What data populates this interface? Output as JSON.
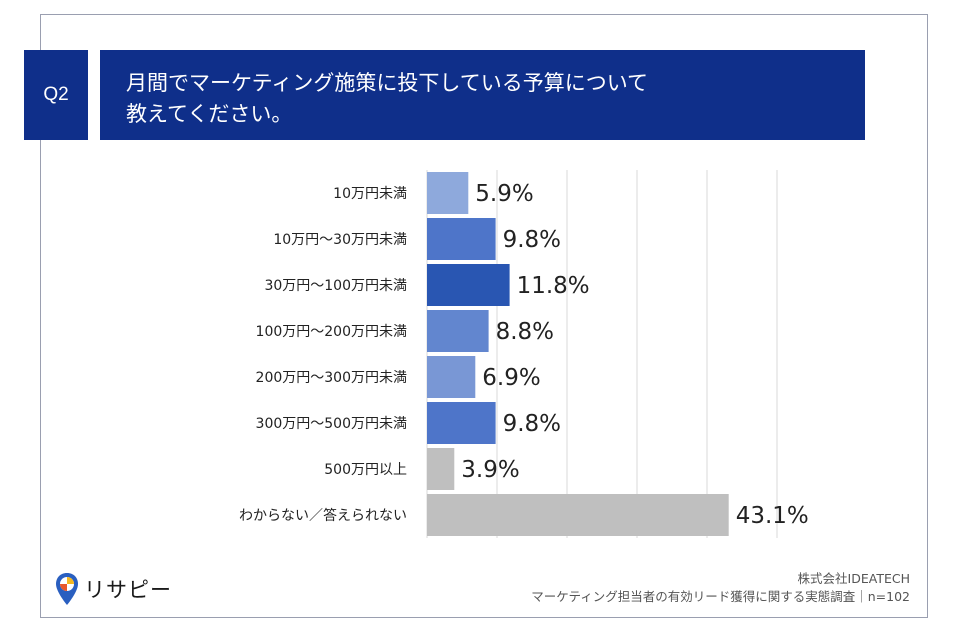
{
  "header": {
    "badge": "Q2",
    "title_line1": "月間でマーケティング施策に投下している予算について",
    "title_line2": "教えてください。"
  },
  "chart_data": {
    "type": "bar",
    "orientation": "horizontal",
    "categories": [
      "10万円未満",
      "10万円〜30万円未満",
      "30万円〜100万円未満",
      "100万円〜200万円未満",
      "200万円〜300万円未満",
      "300万円〜500万円未満",
      "500万円以上",
      "わからない／答えられない"
    ],
    "values": [
      5.9,
      9.8,
      11.8,
      8.8,
      6.9,
      9.8,
      3.9,
      43.1
    ],
    "value_labels": [
      "5.9%",
      "9.8%",
      "11.8%",
      "8.8%",
      "6.9%",
      "9.8%",
      "3.9%",
      "43.1%"
    ],
    "colors": [
      "#8ea9dc",
      "#4e75c9",
      "#2956b2",
      "#6286cf",
      "#7997d5",
      "#4e75c9",
      "#bfbfbf",
      "#bfbfbf"
    ],
    "xlim": [
      0,
      50
    ],
    "grid": true,
    "legend": "none"
  },
  "footer": {
    "logo_text": "リサピー",
    "company": "株式会社IDEATECH",
    "survey": "マーケティング担当者の有効リード獲得に関する実態調査｜n=102"
  }
}
